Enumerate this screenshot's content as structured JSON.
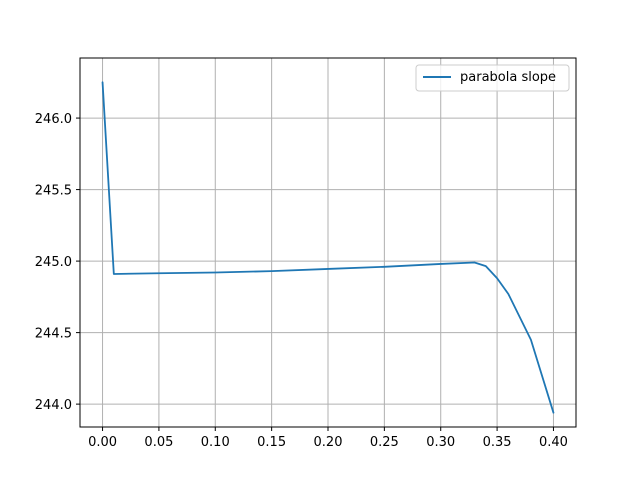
{
  "chart_data": {
    "type": "line",
    "title": "",
    "xlabel": "",
    "ylabel": "",
    "xlim": [
      -0.02,
      0.42
    ],
    "ylim": [
      243.84,
      246.42
    ],
    "xticks": [
      0.0,
      0.05,
      0.1,
      0.15,
      0.2,
      0.25,
      0.3,
      0.35,
      0.4
    ],
    "xtick_labels": [
      "0.00",
      "0.05",
      "0.10",
      "0.15",
      "0.20",
      "0.25",
      "0.30",
      "0.35",
      "0.40"
    ],
    "yticks": [
      244.0,
      244.5,
      245.0,
      245.5,
      246.0
    ],
    "ytick_labels": [
      "244.0",
      "244.5",
      "245.0",
      "245.5",
      "246.0"
    ],
    "grid": true,
    "legend_position": "upper right",
    "series": [
      {
        "name": "parabola slope",
        "color": "#1f77b4",
        "x": [
          0.0,
          0.01,
          0.05,
          0.1,
          0.15,
          0.2,
          0.25,
          0.3,
          0.33,
          0.34,
          0.35,
          0.36,
          0.38,
          0.4
        ],
        "y": [
          246.25,
          244.91,
          244.915,
          244.92,
          244.93,
          244.945,
          244.96,
          244.98,
          244.99,
          244.965,
          244.88,
          244.77,
          244.45,
          243.94
        ]
      }
    ]
  }
}
